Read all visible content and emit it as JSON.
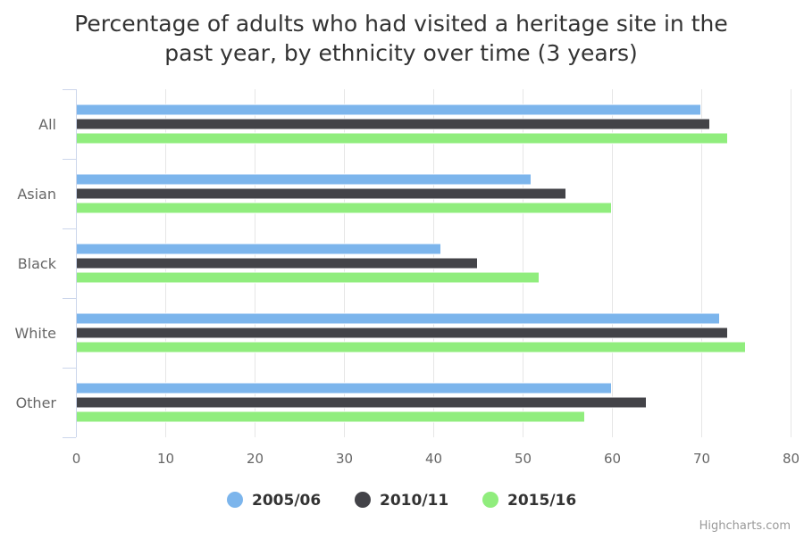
{
  "chart_data": {
    "type": "bar",
    "orientation": "horizontal",
    "title_lines": [
      "Percentage of adults who had visited a heritage site in the",
      "past year, by ethnicity over time (3 years)"
    ],
    "categories": [
      "All",
      "Asian",
      "Black",
      "White",
      "Other"
    ],
    "series": [
      {
        "name": "2005/06",
        "color": "#7cb5ec",
        "values": [
          69.9,
          50.9,
          40.8,
          72.0,
          59.9
        ]
      },
      {
        "name": "2010/11",
        "color": "#434348",
        "values": [
          70.9,
          54.8,
          44.9,
          72.9,
          63.8
        ]
      },
      {
        "name": "2015/16",
        "color": "#90ed7d",
        "values": [
          72.9,
          59.9,
          51.8,
          74.9,
          56.9
        ]
      }
    ],
    "xlim": [
      0,
      80
    ],
    "ticks": [
      "0",
      "10",
      "20",
      "30",
      "40",
      "50",
      "60",
      "70",
      "80"
    ],
    "grid": true,
    "legend_position": "bottom-center",
    "credits": "Highcharts.com"
  }
}
